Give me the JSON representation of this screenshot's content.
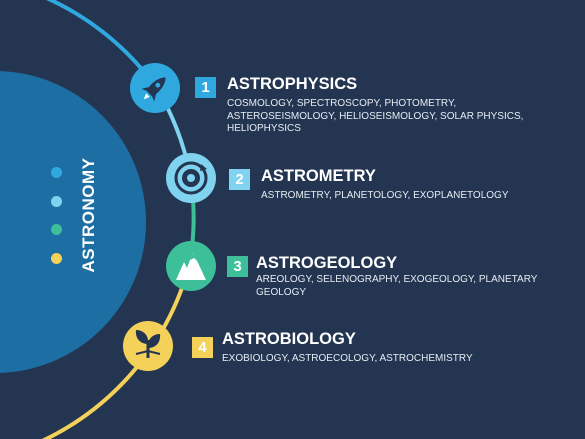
{
  "center": {
    "label": "ASTRONOMY",
    "dot_colors": [
      "#2fa8e0",
      "#7fd3ee",
      "#3dbf9a",
      "#f4d158"
    ]
  },
  "colors": {
    "background": "#243551",
    "big_circle": "#1d6fa3"
  },
  "items": [
    {
      "number": "1",
      "title": "ASTROPHYSICS",
      "description": "COSMOLOGY, SPECTROSCOPY, PHOTOMETRY, ASTEROSEISMOLOGY, HELIOSEISMOLOGY, SOLAR PHYSICS, HELIOPHYSICS",
      "icon": "rocket-icon",
      "color": "#2fa8e0"
    },
    {
      "number": "2",
      "title": "ASTROMETRY",
      "description": "ASTROMETRY, PLANETOLOGY, EXOPLANETOLOGY",
      "icon": "orbit-target-icon",
      "color": "#7fd3ee"
    },
    {
      "number": "3",
      "title": "ASTROGEOLOGY",
      "description": "AREOLOGY, SELENOGRAPHY, EXOGEOLOGY, PLANETARY GEOLOGY",
      "icon": "mountain-icon",
      "color": "#3dbf9a"
    },
    {
      "number": "4",
      "title": "ASTROBIOLOGY",
      "description": "EXOBIOLOGY, ASTROECOLOGY, ASTROCHEMISTRY",
      "icon": "sprout-icon",
      "color": "#f4d158"
    }
  ]
}
